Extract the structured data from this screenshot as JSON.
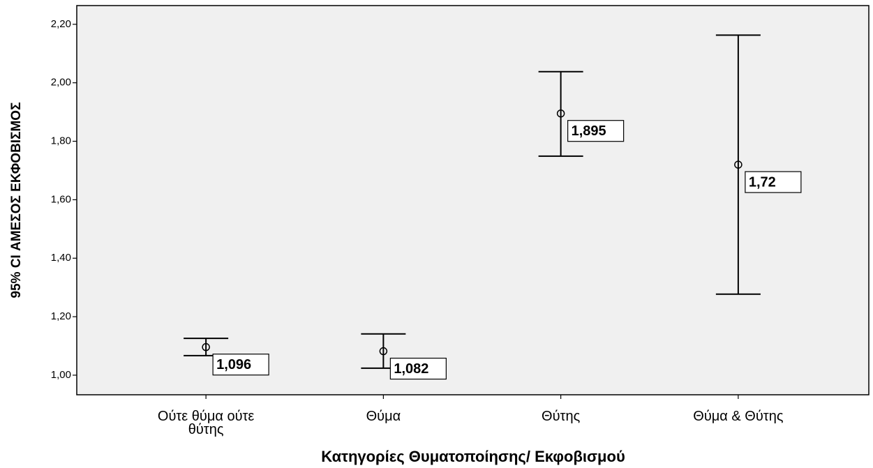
{
  "chart_data": {
    "type": "errorbar",
    "y_label": "95% CI ΑΜΕΣΟΣ ΕΚΦΟΒΙΣΜΟΣ",
    "x_label": "Κατηγορίες Θυματοποίησης/ Εκφοβισμού",
    "categories": [
      "Ούτε θύμα ούτε θύτης",
      "Θύμα",
      "Θύτης",
      "Θύμα & Θύτης"
    ],
    "values": [
      1.096,
      1.082,
      1.895,
      1.72
    ],
    "value_labels": [
      "1,096",
      "1,082",
      "1,895",
      "1,72"
    ],
    "ci_lower": [
      1.067,
      1.024,
      1.749,
      1.277
    ],
    "ci_upper": [
      1.126,
      1.141,
      2.038,
      2.163
    ],
    "color": "#000000",
    "ylim": [
      0.933,
      2.264
    ],
    "yticks": [
      {
        "value": 1.0,
        "label": "1,00"
      },
      {
        "value": 1.2,
        "label": "1,20"
      },
      {
        "value": 1.4,
        "label": "1,40"
      },
      {
        "value": 1.6,
        "label": "1,60"
      },
      {
        "value": 1.8,
        "label": "1,80"
      },
      {
        "value": 2.0,
        "label": "2,00"
      },
      {
        "value": 2.2,
        "label": "2,20"
      }
    ]
  }
}
